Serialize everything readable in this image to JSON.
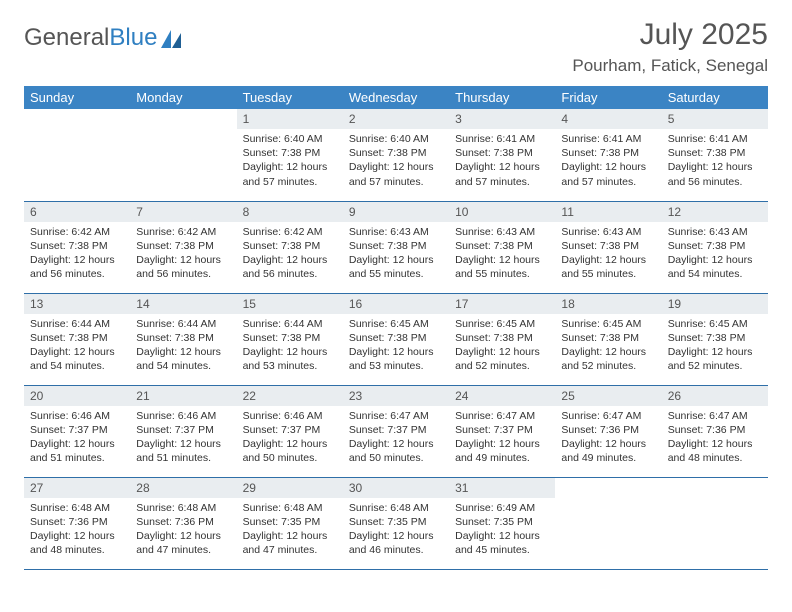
{
  "header": {
    "logo_text_1": "General",
    "logo_text_2": "Blue",
    "month_title": "July 2025",
    "location": "Pourham, Fatick, Senegal"
  },
  "colors": {
    "header_bg": "#3b84c4",
    "header_text": "#ffffff",
    "daynum_bg": "#e9edf0",
    "border": "#2f6fa8",
    "logo_gray": "#555555",
    "logo_blue": "#2f7fc1"
  },
  "day_headers": [
    "Sunday",
    "Monday",
    "Tuesday",
    "Wednesday",
    "Thursday",
    "Friday",
    "Saturday"
  ],
  "weeks": [
    [
      {
        "num": "",
        "lines": []
      },
      {
        "num": "",
        "lines": []
      },
      {
        "num": "1",
        "lines": [
          "Sunrise: 6:40 AM",
          "Sunset: 7:38 PM",
          "Daylight: 12 hours and 57 minutes."
        ]
      },
      {
        "num": "2",
        "lines": [
          "Sunrise: 6:40 AM",
          "Sunset: 7:38 PM",
          "Daylight: 12 hours and 57 minutes."
        ]
      },
      {
        "num": "3",
        "lines": [
          "Sunrise: 6:41 AM",
          "Sunset: 7:38 PM",
          "Daylight: 12 hours and 57 minutes."
        ]
      },
      {
        "num": "4",
        "lines": [
          "Sunrise: 6:41 AM",
          "Sunset: 7:38 PM",
          "Daylight: 12 hours and 57 minutes."
        ]
      },
      {
        "num": "5",
        "lines": [
          "Sunrise: 6:41 AM",
          "Sunset: 7:38 PM",
          "Daylight: 12 hours and 56 minutes."
        ]
      }
    ],
    [
      {
        "num": "6",
        "lines": [
          "Sunrise: 6:42 AM",
          "Sunset: 7:38 PM",
          "Daylight: 12 hours and 56 minutes."
        ]
      },
      {
        "num": "7",
        "lines": [
          "Sunrise: 6:42 AM",
          "Sunset: 7:38 PM",
          "Daylight: 12 hours and 56 minutes."
        ]
      },
      {
        "num": "8",
        "lines": [
          "Sunrise: 6:42 AM",
          "Sunset: 7:38 PM",
          "Daylight: 12 hours and 56 minutes."
        ]
      },
      {
        "num": "9",
        "lines": [
          "Sunrise: 6:43 AM",
          "Sunset: 7:38 PM",
          "Daylight: 12 hours and 55 minutes."
        ]
      },
      {
        "num": "10",
        "lines": [
          "Sunrise: 6:43 AM",
          "Sunset: 7:38 PM",
          "Daylight: 12 hours and 55 minutes."
        ]
      },
      {
        "num": "11",
        "lines": [
          "Sunrise: 6:43 AM",
          "Sunset: 7:38 PM",
          "Daylight: 12 hours and 55 minutes."
        ]
      },
      {
        "num": "12",
        "lines": [
          "Sunrise: 6:43 AM",
          "Sunset: 7:38 PM",
          "Daylight: 12 hours and 54 minutes."
        ]
      }
    ],
    [
      {
        "num": "13",
        "lines": [
          "Sunrise: 6:44 AM",
          "Sunset: 7:38 PM",
          "Daylight: 12 hours and 54 minutes."
        ]
      },
      {
        "num": "14",
        "lines": [
          "Sunrise: 6:44 AM",
          "Sunset: 7:38 PM",
          "Daylight: 12 hours and 54 minutes."
        ]
      },
      {
        "num": "15",
        "lines": [
          "Sunrise: 6:44 AM",
          "Sunset: 7:38 PM",
          "Daylight: 12 hours and 53 minutes."
        ]
      },
      {
        "num": "16",
        "lines": [
          "Sunrise: 6:45 AM",
          "Sunset: 7:38 PM",
          "Daylight: 12 hours and 53 minutes."
        ]
      },
      {
        "num": "17",
        "lines": [
          "Sunrise: 6:45 AM",
          "Sunset: 7:38 PM",
          "Daylight: 12 hours and 52 minutes."
        ]
      },
      {
        "num": "18",
        "lines": [
          "Sunrise: 6:45 AM",
          "Sunset: 7:38 PM",
          "Daylight: 12 hours and 52 minutes."
        ]
      },
      {
        "num": "19",
        "lines": [
          "Sunrise: 6:45 AM",
          "Sunset: 7:38 PM",
          "Daylight: 12 hours and 52 minutes."
        ]
      }
    ],
    [
      {
        "num": "20",
        "lines": [
          "Sunrise: 6:46 AM",
          "Sunset: 7:37 PM",
          "Daylight: 12 hours and 51 minutes."
        ]
      },
      {
        "num": "21",
        "lines": [
          "Sunrise: 6:46 AM",
          "Sunset: 7:37 PM",
          "Daylight: 12 hours and 51 minutes."
        ]
      },
      {
        "num": "22",
        "lines": [
          "Sunrise: 6:46 AM",
          "Sunset: 7:37 PM",
          "Daylight: 12 hours and 50 minutes."
        ]
      },
      {
        "num": "23",
        "lines": [
          "Sunrise: 6:47 AM",
          "Sunset: 7:37 PM",
          "Daylight: 12 hours and 50 minutes."
        ]
      },
      {
        "num": "24",
        "lines": [
          "Sunrise: 6:47 AM",
          "Sunset: 7:37 PM",
          "Daylight: 12 hours and 49 minutes."
        ]
      },
      {
        "num": "25",
        "lines": [
          "Sunrise: 6:47 AM",
          "Sunset: 7:36 PM",
          "Daylight: 12 hours and 49 minutes."
        ]
      },
      {
        "num": "26",
        "lines": [
          "Sunrise: 6:47 AM",
          "Sunset: 7:36 PM",
          "Daylight: 12 hours and 48 minutes."
        ]
      }
    ],
    [
      {
        "num": "27",
        "lines": [
          "Sunrise: 6:48 AM",
          "Sunset: 7:36 PM",
          "Daylight: 12 hours and 48 minutes."
        ]
      },
      {
        "num": "28",
        "lines": [
          "Sunrise: 6:48 AM",
          "Sunset: 7:36 PM",
          "Daylight: 12 hours and 47 minutes."
        ]
      },
      {
        "num": "29",
        "lines": [
          "Sunrise: 6:48 AM",
          "Sunset: 7:35 PM",
          "Daylight: 12 hours and 47 minutes."
        ]
      },
      {
        "num": "30",
        "lines": [
          "Sunrise: 6:48 AM",
          "Sunset: 7:35 PM",
          "Daylight: 12 hours and 46 minutes."
        ]
      },
      {
        "num": "31",
        "lines": [
          "Sunrise: 6:49 AM",
          "Sunset: 7:35 PM",
          "Daylight: 12 hours and 45 minutes."
        ]
      },
      {
        "num": "",
        "lines": []
      },
      {
        "num": "",
        "lines": []
      }
    ]
  ]
}
